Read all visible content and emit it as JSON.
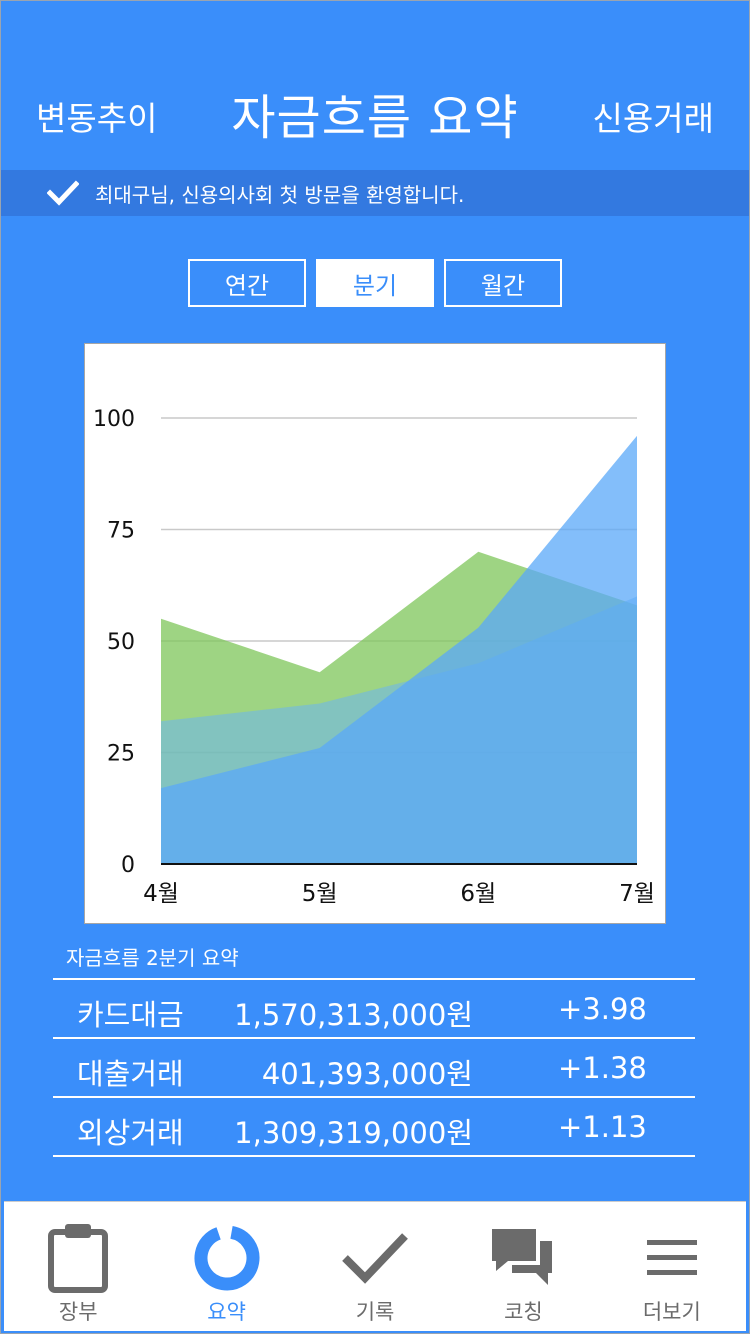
{
  "header": {
    "left_label": "변동추이",
    "title": "자금흐름 요약",
    "right_label": "신용거래"
  },
  "notice": {
    "text": "최대구님, 신용의사회 첫 방문을 환영합니다.",
    "icon": "check-icon"
  },
  "period_tabs": [
    {
      "label": "연간",
      "active": false
    },
    {
      "label": "분기",
      "active": true
    },
    {
      "label": "월간",
      "active": false
    }
  ],
  "chart_data": {
    "type": "area",
    "categories": [
      "4월",
      "5월",
      "6월",
      "7월"
    ],
    "ylim": [
      0,
      100
    ],
    "yticks": [
      0,
      25,
      50,
      75,
      100
    ],
    "grid": true,
    "series": [
      {
        "values": [
          55,
          43,
          70,
          58
        ],
        "color": "#7ec55a"
      },
      {
        "values": [
          32,
          36,
          45,
          60
        ],
        "color": "#6cb4f0"
      },
      {
        "values": [
          17,
          26,
          53,
          96
        ],
        "color": "#5aa8f8"
      }
    ]
  },
  "summary": {
    "title": "자금흐름 2분기 요약",
    "rows": [
      {
        "name": "카드대금",
        "amount": "1,570,313,000원",
        "change": "+3.98"
      },
      {
        "name": "대출거래",
        "amount": "401,393,000원",
        "change": "+1.38"
      },
      {
        "name": "외상거래",
        "amount": "1,309,319,000원",
        "change": "+1.13"
      }
    ]
  },
  "tabbar": [
    {
      "label": "장부",
      "icon": "clipboard-icon",
      "active": false
    },
    {
      "label": "요약",
      "icon": "donut-chart-icon",
      "active": true
    },
    {
      "label": "기록",
      "icon": "check-icon",
      "active": false
    },
    {
      "label": "코칭",
      "icon": "chat-bubbles-icon",
      "active": false
    },
    {
      "label": "더보기",
      "icon": "menu-icon",
      "active": false
    }
  ],
  "colors": {
    "primary": "#3a8efa",
    "notice_bar": "#3379e0",
    "tab_inactive": "#6b6b6b"
  }
}
